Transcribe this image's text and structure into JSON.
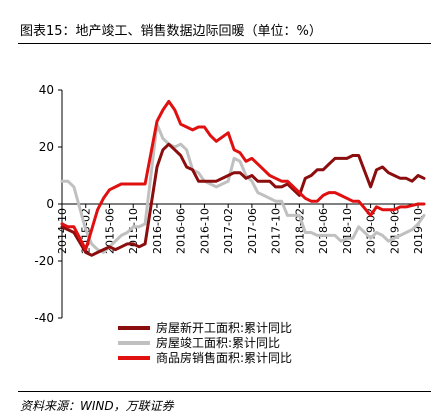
{
  "title": "图表15：地产竣工、销售数据边际回暖（单位：%）",
  "source": "资料来源：WIND，万联证券",
  "colors": {
    "new_start": "#8b0d0d",
    "completion": "#c0c0c0",
    "sales": "#e01010"
  },
  "chart_data": {
    "type": "line",
    "title": "图表15：地产竣工、销售数据边际回暖（单位：%）",
    "xlabel": "",
    "ylabel": "",
    "ylim": [
      -40,
      40
    ],
    "yticks": [
      -40,
      -20,
      0,
      20,
      40
    ],
    "xlim": [
      "2014-10",
      "2019-11"
    ],
    "xticks": [
      "2014-10",
      "2015-02",
      "2015-06",
      "2015-10",
      "2016-02",
      "2016-06",
      "2016-10",
      "2017-02",
      "2017-06",
      "2017-10",
      "2018-02",
      "2018-06",
      "2018-10",
      "2019-02",
      "2019-06",
      "2019-10"
    ],
    "grid": false,
    "legend_position": "bottom-right",
    "series": [
      {
        "name": "房屋新开工面积:累计同比",
        "color": "#8b0d0d",
        "points": [
          [
            "2014-10",
            -8
          ],
          [
            "2014-11",
            -9
          ],
          [
            "2014-12",
            -10
          ],
          [
            "2015-02",
            -17
          ],
          [
            "2015-03",
            -18
          ],
          [
            "2015-04",
            -17
          ],
          [
            "2015-05",
            -16
          ],
          [
            "2015-06",
            -15
          ],
          [
            "2015-07",
            -16
          ],
          [
            "2015-08",
            -15
          ],
          [
            "2015-09",
            -14
          ],
          [
            "2015-10",
            -14
          ],
          [
            "2015-11",
            -15
          ],
          [
            "2015-12",
            -14
          ],
          [
            "2016-02",
            13
          ],
          [
            "2016-03",
            19
          ],
          [
            "2016-04",
            21
          ],
          [
            "2016-05",
            19
          ],
          [
            "2016-06",
            17
          ],
          [
            "2016-07",
            13
          ],
          [
            "2016-08",
            12
          ],
          [
            "2016-09",
            8
          ],
          [
            "2016-10",
            8
          ],
          [
            "2016-11",
            8
          ],
          [
            "2016-12",
            8
          ],
          [
            "2017-02",
            10
          ],
          [
            "2017-03",
            11
          ],
          [
            "2017-04",
            11
          ],
          [
            "2017-05",
            9
          ],
          [
            "2017-06",
            10
          ],
          [
            "2017-07",
            8
          ],
          [
            "2017-08",
            8
          ],
          [
            "2017-09",
            8
          ],
          [
            "2017-10",
            6
          ],
          [
            "2017-11",
            6
          ],
          [
            "2017-12",
            7
          ],
          [
            "2018-02",
            3
          ],
          [
            "2018-03",
            9
          ],
          [
            "2018-04",
            10
          ],
          [
            "2018-05",
            12
          ],
          [
            "2018-06",
            12
          ],
          [
            "2018-07",
            14
          ],
          [
            "2018-08",
            16
          ],
          [
            "2018-09",
            16
          ],
          [
            "2018-10",
            16
          ],
          [
            "2018-11",
            17
          ],
          [
            "2018-12",
            17
          ],
          [
            "2019-02",
            6
          ],
          [
            "2019-03",
            12
          ],
          [
            "2019-04",
            13
          ],
          [
            "2019-05",
            11
          ],
          [
            "2019-06",
            10
          ],
          [
            "2019-07",
            9
          ],
          [
            "2019-08",
            9
          ],
          [
            "2019-09",
            8
          ],
          [
            "2019-10",
            10
          ],
          [
            "2019-11",
            9
          ]
        ]
      },
      {
        "name": "房屋竣工面积:累计同比",
        "color": "#c0c0c0",
        "points": [
          [
            "2014-10",
            8
          ],
          [
            "2014-11",
            8
          ],
          [
            "2014-12",
            6
          ],
          [
            "2015-02",
            -9
          ],
          [
            "2015-03",
            -14
          ],
          [
            "2015-04",
            -16
          ],
          [
            "2015-05",
            -17
          ],
          [
            "2015-06",
            -15
          ],
          [
            "2015-07",
            -13
          ],
          [
            "2015-08",
            -11
          ],
          [
            "2015-09",
            -10
          ],
          [
            "2015-10",
            -8
          ],
          [
            "2015-11",
            -8
          ],
          [
            "2015-12",
            -7
          ],
          [
            "2016-02",
            28
          ],
          [
            "2016-03",
            23
          ],
          [
            "2016-04",
            21
          ],
          [
            "2016-05",
            20
          ],
          [
            "2016-06",
            21
          ],
          [
            "2016-07",
            19
          ],
          [
            "2016-08",
            12
          ],
          [
            "2016-09",
            11
          ],
          [
            "2016-10",
            8
          ],
          [
            "2016-11",
            7
          ],
          [
            "2016-12",
            6
          ],
          [
            "2017-02",
            8
          ],
          [
            "2017-03",
            16
          ],
          [
            "2017-04",
            15
          ],
          [
            "2017-05",
            10
          ],
          [
            "2017-06",
            8
          ],
          [
            "2017-07",
            4
          ],
          [
            "2017-08",
            3
          ],
          [
            "2017-09",
            2
          ],
          [
            "2017-10",
            1
          ],
          [
            "2017-11",
            1
          ],
          [
            "2017-12",
            -4
          ],
          [
            "2018-02",
            -4
          ],
          [
            "2018-03",
            -10
          ],
          [
            "2018-04",
            -10
          ],
          [
            "2018-05",
            -11
          ],
          [
            "2018-06",
            -11
          ],
          [
            "2018-07",
            -11
          ],
          [
            "2018-08",
            -11
          ],
          [
            "2018-09",
            -13
          ],
          [
            "2018-10",
            -12
          ],
          [
            "2018-11",
            -12
          ],
          [
            "2018-12",
            -8
          ],
          [
            "2019-02",
            -12
          ],
          [
            "2019-03",
            -10
          ],
          [
            "2019-04",
            -11
          ],
          [
            "2019-05",
            -13
          ],
          [
            "2019-06",
            -12
          ],
          [
            "2019-07",
            -11
          ],
          [
            "2019-08",
            -10
          ],
          [
            "2019-09",
            -9
          ],
          [
            "2019-10",
            -7
          ],
          [
            "2019-11",
            -4
          ]
        ]
      },
      {
        "name": "商品房销售面积:累计同比",
        "color": "#e01010",
        "points": [
          [
            "2014-10",
            -7
          ],
          [
            "2014-11",
            -8
          ],
          [
            "2014-12",
            -8
          ],
          [
            "2015-02",
            -16
          ],
          [
            "2015-03",
            -9
          ],
          [
            "2015-04",
            -2
          ],
          [
            "2015-05",
            2
          ],
          [
            "2015-06",
            5
          ],
          [
            "2015-07",
            6
          ],
          [
            "2015-08",
            7
          ],
          [
            "2015-09",
            7
          ],
          [
            "2015-10",
            7
          ],
          [
            "2015-11",
            7
          ],
          [
            "2015-12",
            7
          ],
          [
            "2016-02",
            29
          ],
          [
            "2016-03",
            33
          ],
          [
            "2016-04",
            36
          ],
          [
            "2016-05",
            33
          ],
          [
            "2016-06",
            28
          ],
          [
            "2016-07",
            27
          ],
          [
            "2016-08",
            26
          ],
          [
            "2016-09",
            27
          ],
          [
            "2016-10",
            27
          ],
          [
            "2016-11",
            24
          ],
          [
            "2016-12",
            22
          ],
          [
            "2017-02",
            25
          ],
          [
            "2017-03",
            19
          ],
          [
            "2017-04",
            18
          ],
          [
            "2017-05",
            15
          ],
          [
            "2017-06",
            16
          ],
          [
            "2017-07",
            14
          ],
          [
            "2017-08",
            12
          ],
          [
            "2017-09",
            10
          ],
          [
            "2017-10",
            9
          ],
          [
            "2017-11",
            8
          ],
          [
            "2017-12",
            8
          ],
          [
            "2018-02",
            4
          ],
          [
            "2018-03",
            2
          ],
          [
            "2018-04",
            1
          ],
          [
            "2018-05",
            1
          ],
          [
            "2018-06",
            3
          ],
          [
            "2018-07",
            4
          ],
          [
            "2018-08",
            4
          ],
          [
            "2018-09",
            3
          ],
          [
            "2018-10",
            2
          ],
          [
            "2018-11",
            1
          ],
          [
            "2018-12",
            1
          ],
          [
            "2019-02",
            -4
          ],
          [
            "2019-03",
            -1
          ],
          [
            "2019-04",
            -2
          ],
          [
            "2019-05",
            -2
          ],
          [
            "2019-06",
            -2
          ],
          [
            "2019-07",
            -1
          ],
          [
            "2019-08",
            -1
          ],
          [
            "2019-09",
            -0.5
          ],
          [
            "2019-10",
            0
          ],
          [
            "2019-11",
            0
          ]
        ]
      }
    ]
  }
}
